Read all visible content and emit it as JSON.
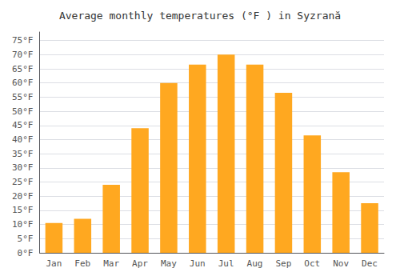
{
  "chart_data": {
    "type": "bar",
    "title": "Average monthly temperatures (°F ) in Syzrană",
    "categories": [
      "Jan",
      "Feb",
      "Mar",
      "Apr",
      "May",
      "Jun",
      "Jul",
      "Aug",
      "Sep",
      "Oct",
      "Nov",
      "Dec"
    ],
    "values": [
      10.5,
      12,
      24,
      44,
      60,
      66.5,
      70,
      66.5,
      56.5,
      41.5,
      28.5,
      17.5
    ],
    "color": "#FFA820",
    "ylim": [
      0,
      78
    ],
    "yticks": [
      {
        "value": 0,
        "label": "0°F"
      },
      {
        "value": 5,
        "label": "5°F"
      },
      {
        "value": 10,
        "label": "10°F"
      },
      {
        "value": 15,
        "label": "15°F"
      },
      {
        "value": 20,
        "label": "20°F"
      },
      {
        "value": 25,
        "label": "25°F"
      },
      {
        "value": 30,
        "label": "30°F"
      },
      {
        "value": 35,
        "label": "35°F"
      },
      {
        "value": 40,
        "label": "40°F"
      },
      {
        "value": 45,
        "label": "45°F"
      },
      {
        "value": 50,
        "label": "50°F"
      },
      {
        "value": 55,
        "label": "55°F"
      },
      {
        "value": 60,
        "label": "60°F"
      },
      {
        "value": 65,
        "label": "65°F"
      },
      {
        "value": 70,
        "label": "70°F"
      },
      {
        "value": 75,
        "label": "75°F"
      }
    ],
    "grid": true
  }
}
